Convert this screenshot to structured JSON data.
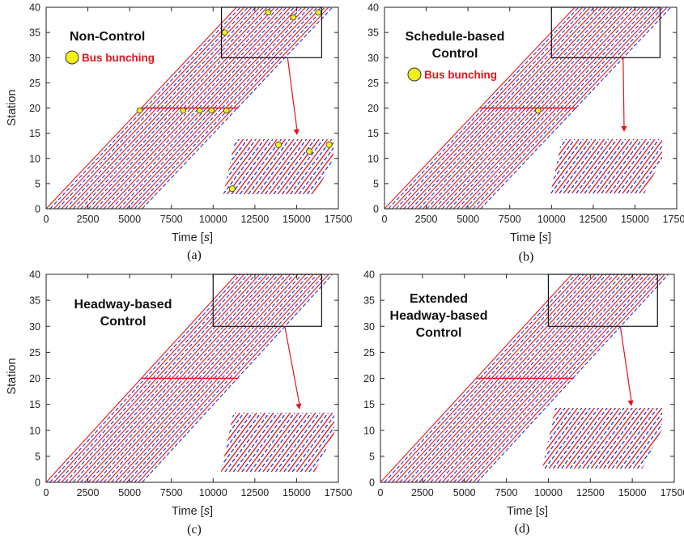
{
  "figure": {
    "x_axis_label_prefix": "Time [",
    "x_axis_label_unit": "s",
    "x_axis_label_suffix": "]",
    "y_axis_label": "Station",
    "colors": {
      "red_trajectory": "#e8131c",
      "blue_trajectory": "#2b2fcf",
      "bunching_marker": "#f4ee1a",
      "arrow": "#e8131c"
    }
  },
  "chart_data": [
    {
      "type": "line",
      "subplot_label": "(a)",
      "title_lines": [
        "Non-Control"
      ],
      "legend": {
        "marker": "bunching-circle",
        "label": "Bus bunching"
      },
      "xlabel": "Time [s]",
      "ylabel": "Station",
      "xlim": [
        0,
        17500
      ],
      "ylim": [
        0,
        40
      ],
      "xticks": [
        0,
        2500,
        5000,
        7500,
        10000,
        12500,
        15000,
        17500
      ],
      "yticks": [
        0,
        5,
        10,
        15,
        20,
        25,
        30,
        35,
        40
      ],
      "trajectories": {
        "series": [
          "Red",
          "Blue"
        ],
        "first_departure_s": 0,
        "last_departure_s": 5800,
        "pitch_s": 230,
        "travel_s_station_0_to_20": 5700,
        "dwell_at_station_20_s": 5800,
        "travel_s_station_20_to_40": 5700,
        "max_station": 40
      },
      "bunching_points": [
        [
          5600,
          19.5
        ],
        [
          8200,
          19.5
        ],
        [
          9200,
          19.5
        ],
        [
          9900,
          19.5
        ],
        [
          10800,
          19.5
        ],
        [
          10700,
          35
        ],
        [
          13300,
          39
        ],
        [
          14800,
          38
        ],
        [
          16300,
          39
        ]
      ],
      "zoom_box": {
        "x_range": [
          10500,
          16500
        ],
        "y_range": [
          30,
          40
        ]
      },
      "inset_bunching": [
        [
          0.08,
          0.1
        ],
        [
          0.5,
          0.9
        ],
        [
          0.78,
          0.78
        ],
        [
          0.96,
          0.9
        ]
      ]
    },
    {
      "type": "line",
      "subplot_label": "(b)",
      "title_lines": [
        "Schedule-based",
        "Control"
      ],
      "legend": {
        "marker": "bunching-circle",
        "label": "Bus bunching"
      },
      "xlabel": "Time [s]",
      "ylabel": "",
      "xlim": [
        0,
        17500
      ],
      "ylim": [
        0,
        40
      ],
      "xticks": [
        0,
        2500,
        5000,
        7500,
        10000,
        12500,
        15000,
        17500
      ],
      "yticks": [
        0,
        5,
        10,
        15,
        20,
        25,
        30,
        35,
        40
      ],
      "trajectories": {
        "series": [
          "Red",
          "Blue"
        ],
        "first_departure_s": 0,
        "last_departure_s": 5800,
        "pitch_s": 230,
        "travel_s_station_0_to_20": 5700,
        "dwell_at_station_20_s": 5800,
        "travel_s_station_20_to_40": 5700,
        "max_station": 40
      },
      "bunching_points": [
        [
          9200,
          19.5
        ]
      ],
      "zoom_box": {
        "x_range": [
          10000,
          16500
        ],
        "y_range": [
          30,
          40
        ]
      },
      "inset_bunching": []
    },
    {
      "type": "line",
      "subplot_label": "(c)",
      "title_lines": [
        "Headway-based",
        "Control"
      ],
      "xlabel": "Time [s]",
      "ylabel": "Station",
      "xlim": [
        0,
        17500
      ],
      "ylim": [
        0,
        40
      ],
      "xticks": [
        0,
        2500,
        5000,
        7500,
        10000,
        12500,
        15000,
        17500
      ],
      "yticks": [
        0,
        5,
        10,
        15,
        20,
        25,
        30,
        35,
        40
      ],
      "trajectories": {
        "series": [
          "Red",
          "Blue"
        ],
        "first_departure_s": 0,
        "last_departure_s": 5800,
        "pitch_s": 230,
        "travel_s_station_0_to_20": 5700,
        "dwell_at_station_20_s": 5800,
        "travel_s_station_20_to_40": 5700,
        "max_station": 40
      },
      "bunching_points": [],
      "zoom_box": {
        "x_range": [
          10000,
          16500
        ],
        "y_range": [
          30,
          40
        ]
      },
      "inset_bunching": []
    },
    {
      "type": "line",
      "subplot_label": "(d)",
      "title_lines": [
        "Extended",
        "Headway-based",
        "Control"
      ],
      "xlabel": "Time [s]",
      "ylabel": "",
      "xlim": [
        0,
        17500
      ],
      "ylim": [
        0,
        40
      ],
      "xticks": [
        0,
        2500,
        5000,
        7500,
        10000,
        12500,
        15000,
        17500
      ],
      "yticks": [
        0,
        5,
        10,
        15,
        20,
        25,
        30,
        35,
        40
      ],
      "trajectories": {
        "series": [
          "Red",
          "Blue"
        ],
        "first_departure_s": 0,
        "last_departure_s": 5800,
        "pitch_s": 230,
        "travel_s_station_0_to_20": 5700,
        "dwell_at_station_20_s": 5800,
        "travel_s_station_20_to_40": 5700,
        "max_station": 40
      },
      "bunching_points": [],
      "zoom_box": {
        "x_range": [
          10000,
          16500
        ],
        "y_range": [
          30,
          40
        ]
      },
      "inset_bunching": []
    }
  ]
}
